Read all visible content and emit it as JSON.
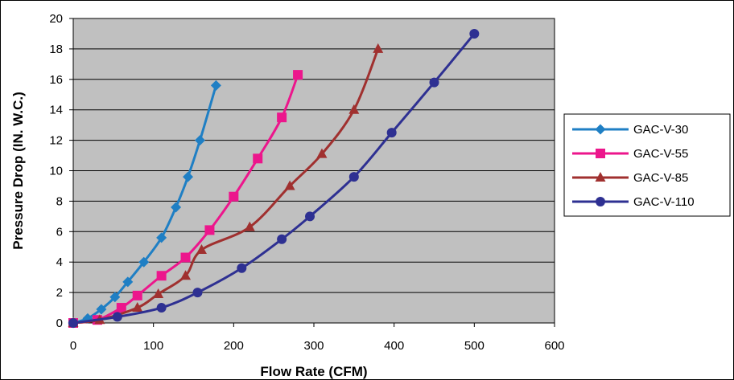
{
  "chart_data": {
    "type": "line",
    "xlabel": "Flow Rate (CFM)",
    "ylabel": "Pressure Drop (IN. W.C.)",
    "xlim": [
      0,
      600
    ],
    "ylim": [
      0,
      20
    ],
    "x_ticks": [
      0,
      100,
      200,
      300,
      400,
      500,
      600
    ],
    "y_ticks": [
      0,
      2,
      4,
      6,
      8,
      10,
      12,
      14,
      16,
      18,
      20
    ],
    "grid": "horizontal",
    "plot_background": "#c0c0c0",
    "legend_position": "right",
    "series": [
      {
        "name": "GAC-V-30",
        "color": "#1f7fc4",
        "marker": "diamond",
        "x": [
          0,
          18,
          35,
          52,
          68,
          88,
          110,
          128,
          143,
          158,
          178
        ],
        "y": [
          0,
          0.3,
          0.9,
          1.7,
          2.7,
          4.0,
          5.6,
          7.6,
          9.6,
          12.0,
          15.6
        ]
      },
      {
        "name": "GAC-V-55",
        "color": "#ec168c",
        "marker": "square",
        "x": [
          0,
          30,
          60,
          80,
          110,
          140,
          170,
          200,
          230,
          260,
          280
        ],
        "y": [
          0,
          0.2,
          1.0,
          1.8,
          3.1,
          4.3,
          6.1,
          8.3,
          10.8,
          13.5,
          16.3
        ]
      },
      {
        "name": "GAC-V-85",
        "color": "#a0302f",
        "marker": "triangle",
        "x": [
          0,
          33,
          80,
          106,
          140,
          160,
          220,
          270,
          310,
          350,
          380
        ],
        "y": [
          0,
          0.2,
          1.0,
          1.9,
          3.1,
          4.8,
          6.3,
          9.0,
          11.1,
          14.0,
          18.0
        ]
      },
      {
        "name": "GAC-V-110",
        "color": "#2e3092",
        "marker": "circle",
        "x": [
          0,
          55,
          110,
          155,
          210,
          260,
          295,
          350,
          397,
          450,
          500
        ],
        "y": [
          0,
          0.4,
          1.0,
          2.0,
          3.6,
          5.5,
          7.0,
          9.6,
          12.5,
          15.8,
          19.0
        ]
      }
    ]
  }
}
